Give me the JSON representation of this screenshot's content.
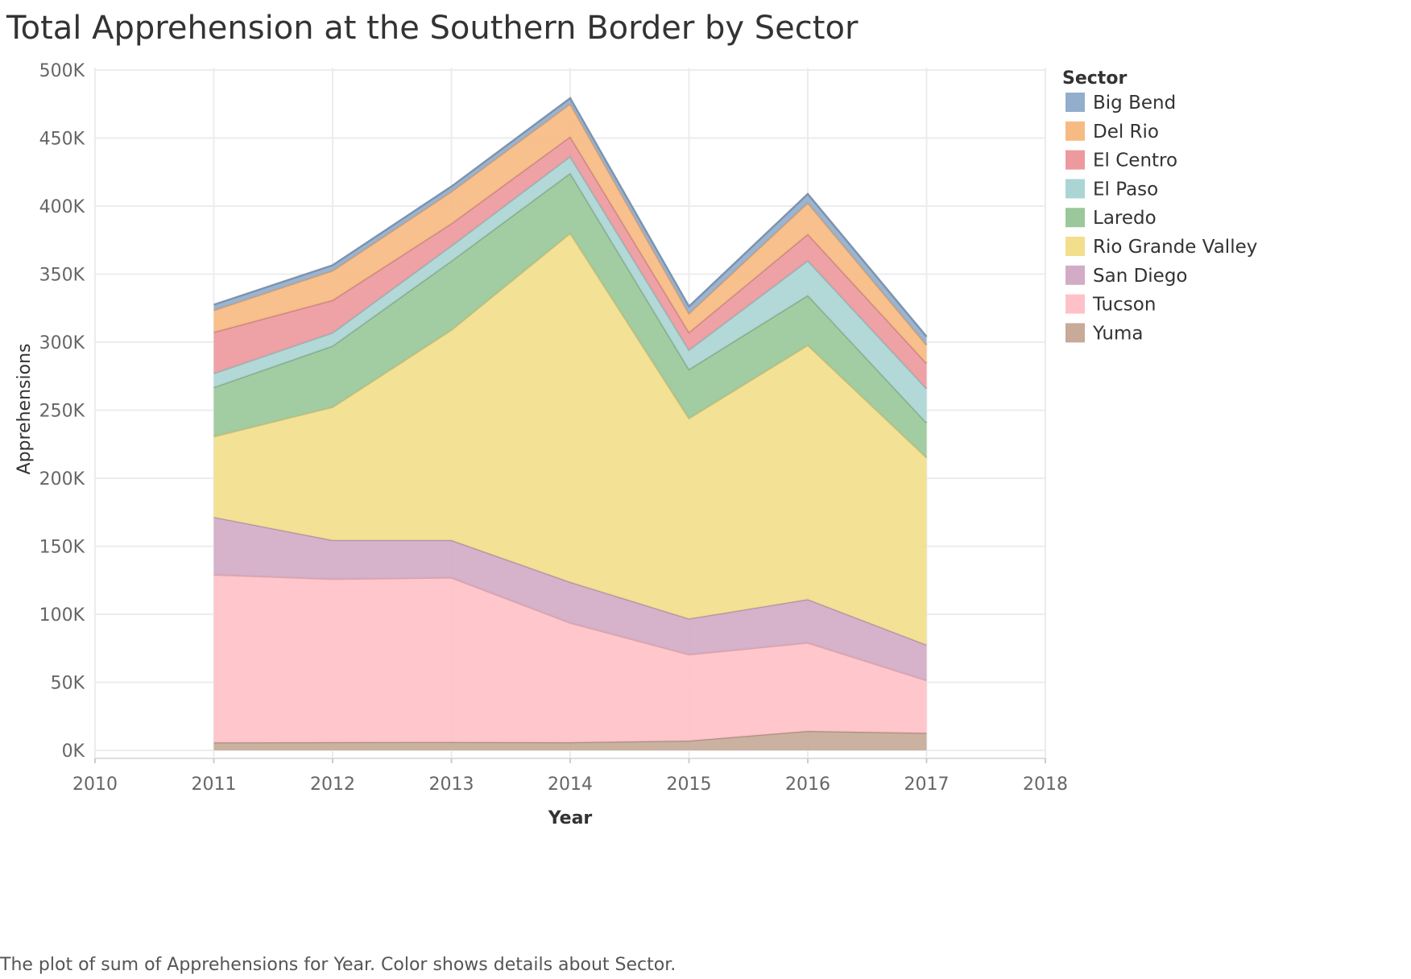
{
  "title": "Total Apprehension at the Southern Border by Sector",
  "caption": "The plot of sum of Apprehensions for Year.  Color shows details about Sector.",
  "chart_data": {
    "type": "area",
    "stacked": true,
    "title": "Total Apprehension at the Southern Border by Sector",
    "xlabel": "Year",
    "ylabel": "Apprehensions",
    "x_ticks": [
      "2010",
      "2011",
      "2012",
      "2013",
      "2014",
      "2015",
      "2016",
      "2017",
      "2018"
    ],
    "x_range": [
      2010,
      2018
    ],
    "y_ticks": [
      "0K",
      "50K",
      "100K",
      "150K",
      "200K",
      "250K",
      "300K",
      "350K",
      "400K",
      "450K",
      "500K"
    ],
    "ylim": [
      0,
      500000
    ],
    "grid": true,
    "legend_title": "Sector",
    "legend_position": "right",
    "x": [
      2011,
      2012,
      2013,
      2014,
      2015,
      2016,
      2017
    ],
    "series": [
      {
        "name": "Yuma",
        "color": "#c7aa98",
        "values": [
          5800,
          6000,
          6100,
          5900,
          7100,
          14200,
          12800
        ]
      },
      {
        "name": "Tucson",
        "color": "#ffc1c8",
        "values": [
          123300,
          120000,
          120900,
          87900,
          63400,
          64900,
          38700
        ]
      },
      {
        "name": "San Diego",
        "color": "#d2abc7",
        "values": [
          42400,
          28500,
          27500,
          29900,
          26300,
          31900,
          26100
        ]
      },
      {
        "name": "Rio Grande Valley",
        "color": "#f2df8c",
        "values": [
          59200,
          97800,
          154500,
          256400,
          147300,
          186800,
          137600
        ]
      },
      {
        "name": "Laredo",
        "color": "#9ac89a",
        "values": [
          36100,
          45000,
          50700,
          44100,
          35900,
          36600,
          25500
        ]
      },
      {
        "name": "El Paso",
        "color": "#abd5d5",
        "values": [
          10300,
          9700,
          11200,
          12300,
          14400,
          25600,
          25200
        ]
      },
      {
        "name": "El Centro",
        "color": "#ed9a9e",
        "values": [
          30300,
          23900,
          16300,
          14500,
          12800,
          19400,
          18600
        ]
      },
      {
        "name": "Del Rio",
        "color": "#f6bb82",
        "values": [
          16100,
          21700,
          23500,
          24200,
          14000,
          23100,
          13500
        ]
      },
      {
        "name": "Big Bend",
        "color": "#93aecd",
        "values": [
          4000,
          3900,
          3700,
          4100,
          5000,
          6400,
          6000
        ]
      }
    ],
    "legend_order": [
      "Big Bend",
      "Del Rio",
      "El Centro",
      "El Paso",
      "Laredo",
      "Rio Grande Valley",
      "San Diego",
      "Tucson",
      "Yuma"
    ]
  }
}
